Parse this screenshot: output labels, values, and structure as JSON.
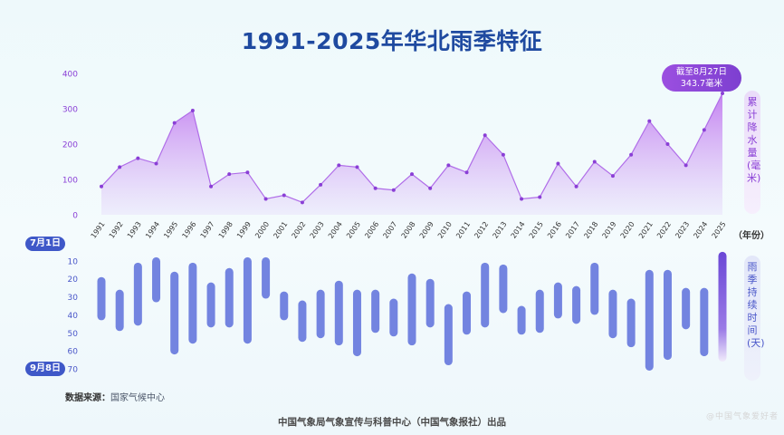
{
  "title": "1991-2025年华北雨季特征",
  "source_label": "数据来源：",
  "source": "国家气候中心",
  "publisher": "中国气象局气象宣传与科普中心（中国气象报社）出品",
  "watermark": "@中国气象爱好者",
  "rain_axis_label": "累计降水量(毫米)",
  "duration_axis_label": "雨季持续时间(天)",
  "year_axis_label": "（年份）",
  "callout": {
    "line1": "截至8月27日",
    "line2": "343.7毫米"
  },
  "start_marker": "7月1日",
  "end_marker": "9月8日",
  "colors": {
    "title": "#1f4aa0",
    "rain_line": "#b06de8",
    "rain_fill": "#c98cf0",
    "dot": "#8a3fd6",
    "bar": "#7384e0",
    "bar_2025": "#7b4fd9",
    "pill": "#3f58c8"
  },
  "chart_data": [
    {
      "type": "area",
      "ylabel": "累计降水量(毫米)",
      "ylim": [
        0,
        400
      ],
      "yticks": [
        "400",
        "300",
        "200",
        "100",
        "0"
      ],
      "x": [
        "1991",
        "1992",
        "1993",
        "1994",
        "1995",
        "1996",
        "1997",
        "1998",
        "1999",
        "2000",
        "2001",
        "2002",
        "2003",
        "2004",
        "2005",
        "2006",
        "2007",
        "2008",
        "2009",
        "2010",
        "2011",
        "2012",
        "2013",
        "2014",
        "2015",
        "2016",
        "2017",
        "2018",
        "2019",
        "2020",
        "2021",
        "2022",
        "2023",
        "2024",
        "2025"
      ],
      "values": [
        80,
        135,
        160,
        145,
        260,
        295,
        80,
        115,
        120,
        45,
        55,
        35,
        85,
        140,
        135,
        75,
        70,
        115,
        75,
        140,
        120,
        225,
        170,
        45,
        50,
        145,
        80,
        150,
        110,
        170,
        265,
        200,
        140,
        240,
        343.7
      ]
    },
    {
      "type": "bar",
      "ylabel": "雨季持续时间(天)",
      "ylim": [
        0,
        70
      ],
      "yticks": [
        "10",
        "20",
        "30",
        "40",
        "50",
        "60",
        "70"
      ],
      "x": [
        "1991",
        "1992",
        "1993",
        "1994",
        "1995",
        "1996",
        "1997",
        "1998",
        "1999",
        "2000",
        "2001",
        "2002",
        "2003",
        "2004",
        "2005",
        "2006",
        "2007",
        "2008",
        "2009",
        "2010",
        "2011",
        "2012",
        "2013",
        "2014",
        "2015",
        "2016",
        "2017",
        "2018",
        "2019",
        "2020",
        "2021",
        "2022",
        "2023",
        "2024",
        "2025"
      ],
      "ranges": [
        [
          19,
          43
        ],
        [
          26,
          49
        ],
        [
          11,
          46
        ],
        [
          8,
          33
        ],
        [
          16,
          62
        ],
        [
          11,
          56
        ],
        [
          22,
          47
        ],
        [
          14,
          47
        ],
        [
          8,
          56
        ],
        [
          8,
          31
        ],
        [
          27,
          43
        ],
        [
          32,
          55
        ],
        [
          26,
          53
        ],
        [
          21,
          57
        ],
        [
          26,
          63
        ],
        [
          26,
          50
        ],
        [
          31,
          52
        ],
        [
          17,
          57
        ],
        [
          20,
          47
        ],
        [
          34,
          68
        ],
        [
          27,
          51
        ],
        [
          11,
          47
        ],
        [
          12,
          39
        ],
        [
          35,
          51
        ],
        [
          26,
          50
        ],
        [
          22,
          42
        ],
        [
          24,
          45
        ],
        [
          11,
          40
        ],
        [
          26,
          53
        ],
        [
          31,
          58
        ],
        [
          15,
          71
        ],
        [
          15,
          65
        ],
        [
          25,
          48
        ],
        [
          25,
          63
        ],
        [
          5,
          66
        ]
      ]
    }
  ]
}
